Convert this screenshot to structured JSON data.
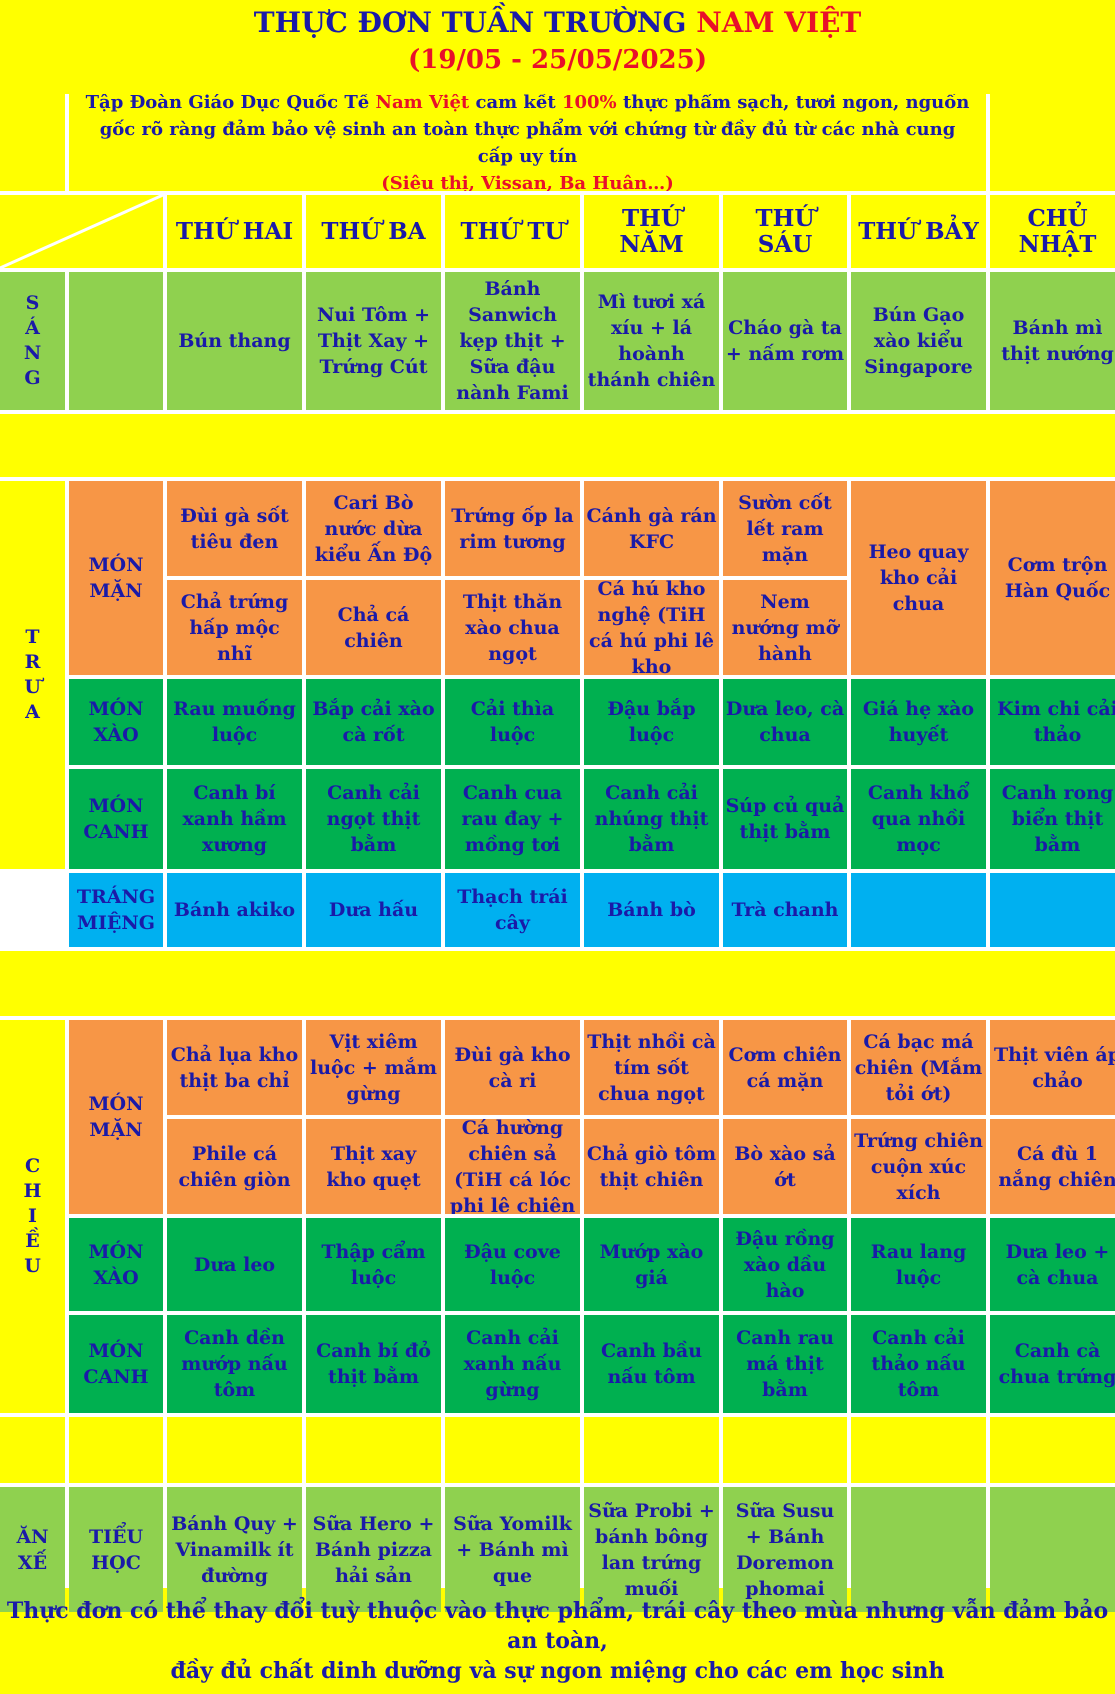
{
  "title": {
    "part1": "THỰC ĐƠN TUẦN TRƯỜNG",
    "part2": "NAM VIỆT"
  },
  "date_range": "(19/05 - 25/05/2025)",
  "intro": {
    "t1": "Tập Đoàn Giáo Dục Quốc Tế",
    "t2": "Nam Việt",
    "t3": "cam kết",
    "t4": "100%",
    "t5": "thực phẩm sạch, tươi ngon, nguồn gốc rõ ràng đảm bảo vệ sinh an toàn thực phẩm với chứng từ đầy đủ từ các nhà cung cấp uy tín",
    "t6": "(Siêu thị, Vissan, Ba Huân…)"
  },
  "days": [
    "THỨ HAI",
    "THỨ BA",
    "THỨ TƯ",
    "THỨ NĂM",
    "THỨ SÁU",
    "THỨ BẢY",
    "CHỦ NHẬT"
  ],
  "meals": {
    "sang": {
      "letters": [
        "S",
        "Á",
        "N",
        "G"
      ]
    },
    "trua": {
      "letters": [
        "T",
        "R",
        "Ư",
        "A"
      ]
    },
    "chieu": {
      "letters": [
        "C",
        "H",
        "I",
        "Ề",
        "U"
      ]
    },
    "an_xe": "ĂN XẾ"
  },
  "categories": {
    "mon_man": "MÓN MẶN",
    "mon_xao": "MÓN XÀO",
    "mon_canh": "MÓN CANH",
    "trang_mieng": "TRÁNG MIỆNG",
    "tieu_hoc": "TIỂU HỌC"
  },
  "sang": [
    "Bún thang",
    "Nui Tôm + Thịt Xay + Trứng Cút",
    "Bánh Sanwich kẹp thịt + Sữa đậu nành Fami",
    "Mì tươi xá xíu + lá hoành thánh chiên",
    "Cháo gà ta + nấm rơm",
    "Bún Gạo xào kiểu Singapore",
    "Bánh mì thịt nướng"
  ],
  "trua": {
    "man1": [
      "Đùi gà sốt tiêu đen",
      "Cari Bò nước dừa kiểu Ấn Độ",
      "Trứng ốp la rim tương",
      "Cánh gà rán KFC",
      "Sườn cốt lết ram mặn"
    ],
    "man2": [
      "Chả trứng hấp mộc nhĩ",
      "Chả cá chiên",
      "Thịt thăn xào chua ngọt",
      "Cá hú kho nghệ (TiH cá hú phi lê kho",
      "Nem nướng mỡ hành"
    ],
    "man_weekend": [
      "Heo quay kho cải chua",
      "Cơm trộn Hàn Quốc"
    ],
    "xao": [
      "Rau muống luộc",
      "Bắp cải xào cà rốt",
      "Cải thìa luộc",
      "Đậu bắp luộc",
      "Dưa leo, cà chua",
      "Giá hẹ xào huyết",
      "Kim chi cải thảo"
    ],
    "canh": [
      "Canh bí xanh hầm xương",
      "Canh cải ngọt thịt bằm",
      "Canh cua rau đay + mồng tơi",
      "Canh cải nhúng thịt bằm",
      "Súp củ quả thịt bằm",
      "Canh khổ qua nhồi mọc",
      "Canh rong biển thịt bằm"
    ],
    "trang_mieng": [
      "Bánh akiko",
      "Dưa hấu",
      "Thạch trái cây",
      "Bánh bò",
      "Trà chanh",
      "",
      ""
    ]
  },
  "chieu": {
    "man1": [
      "Chả lụa kho thịt ba chỉ",
      "Vịt xiêm luộc + mắm gừng",
      "Đùi gà kho cà ri",
      "Thịt nhồi cà tím sốt chua ngọt",
      "Cơm chiên cá mặn",
      "Cá bạc má chiên (Mắm tỏi ớt)",
      "Thịt viên áp chảo"
    ],
    "man2": [
      "Phile cá chiên giòn",
      "Thịt xay kho quẹt",
      "Cá hường chiên sả (TiH cá lóc phi lê chiên",
      "Chả giò tôm thịt chiên",
      "Bò xào sả ớt",
      "Trứng chiên cuộn xúc xích",
      "Cá đù 1 nắng chiên"
    ],
    "xao": [
      "Dưa leo",
      "Thập cẩm luộc",
      "Đậu cove luộc",
      "Mướp xào giá",
      "Đậu rồng xào dầu hào",
      "Rau lang luộc",
      "Dưa leo + cà chua"
    ],
    "canh": [
      "Canh dền mướp nấu tôm",
      "Canh bí đỏ thịt bằm",
      "Canh cải xanh nấu gừng",
      "Canh bầu nấu tôm",
      "Canh rau má thịt bằm",
      "Canh cải thảo nấu tôm",
      "Canh cà chua trứng"
    ]
  },
  "an_xe": [
    "Bánh Quy + Vinamilk ít đường",
    "Sữa Hero + Bánh pizza hải sản",
    "Sữa Yomilk + Bánh mì que",
    "Sữa Probi + bánh bông lan trứng muối",
    "Sữa Susu + Bánh Doremon phomai",
    "",
    ""
  ],
  "footer": {
    "line1": "Thực đơn có thể thay đổi tuỳ thuộc vào thực phẩm, trái cây theo mùa nhưng vẫn đảm bảo an toàn,",
    "line2": "đầy đủ chất dinh dưỡng và sự ngon miệng cho các em học sinh"
  },
  "colors": {
    "background": "#ffff00",
    "text": "#1a1aa8",
    "accent": "#e8102a",
    "breakfast": "#8fd14f",
    "main_dish": "#f79646",
    "side_dish": "#00b050",
    "dessert": "#00b0f0"
  }
}
